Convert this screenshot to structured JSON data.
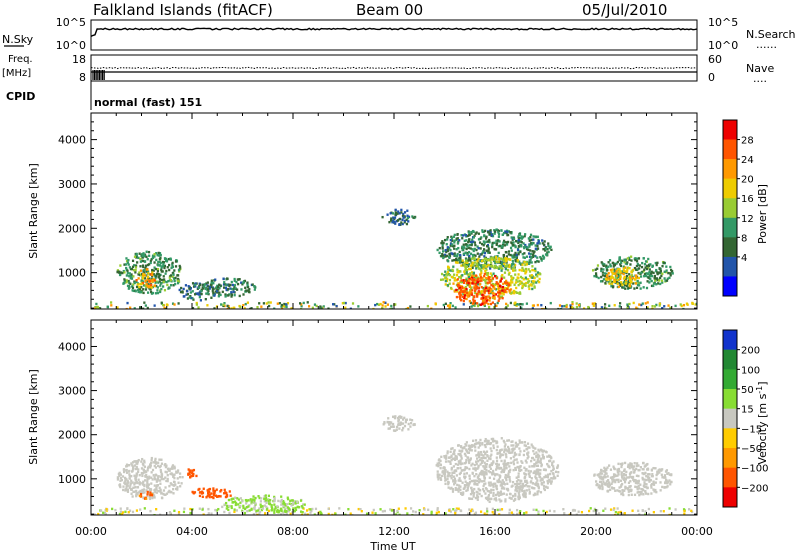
{
  "header": {
    "station": "Falkland Islands (fitACF)",
    "beam": "Beam 00",
    "date": "05/Jul/2010"
  },
  "noise_panel": {
    "left_label": "N.Sky",
    "left_ticks": [
      "10^5",
      "10^0"
    ],
    "right_ticks": [
      "10^5",
      "10^0"
    ],
    "right_label": "N.Search",
    "right_legend": "......"
  },
  "freq_panel": {
    "left_label_top": "Freq.",
    "left_label_bottom": "[MHz]",
    "left_ticks": [
      "18",
      "8"
    ],
    "right_ticks": [
      "60",
      "0"
    ],
    "right_label": "Nave",
    "right_legend": "....",
    "cpid_label": "CPID",
    "cpid_value": "normal (fast) 151"
  },
  "colorbar_power": {
    "label": "Power [dB]",
    "ticks": [
      "28",
      "24",
      "20",
      "16",
      "12",
      "8",
      "4"
    ],
    "colors": [
      "#ee0000",
      "#ff5500",
      "#ff9900",
      "#eecc00",
      "#99cc33",
      "#339966",
      "#336633",
      "#2255aa",
      "#0000ff"
    ]
  },
  "colorbar_velocity": {
    "label_main": "Velocity [m s",
    "label_sup": "-1",
    "label_end": "]",
    "ticks": [
      "200",
      "100",
      "50",
      "15",
      "−15",
      "−50",
      "−100",
      "−200"
    ],
    "colors": [
      "#1133cc",
      "#228833",
      "#33aa33",
      "#88dd33",
      "#c8c8c0",
      "#ffcc00",
      "#ff9900",
      "#ff5500",
      "#ee0000"
    ]
  },
  "chart_data": [
    {
      "type": "heatmap",
      "panel": "power",
      "ylabel": "Slant Range [km]",
      "yticks": [
        1000,
        2000,
        3000,
        4000
      ],
      "ylim": [
        180,
        4600
      ],
      "xticks": [
        "00:00",
        "04:00",
        "08:00",
        "12:00",
        "16:00",
        "20:00",
        "00:00"
      ],
      "xlim_hours": [
        0,
        24
      ],
      "regions": [
        {
          "t0": 1.0,
          "t1": 3.6,
          "r0": 550,
          "r1": 1500,
          "value": 10
        },
        {
          "t0": 1.7,
          "t1": 2.6,
          "r0": 650,
          "r1": 1100,
          "value": 22
        },
        {
          "t0": 3.4,
          "t1": 5.0,
          "r0": 400,
          "r1": 800,
          "value": 6
        },
        {
          "t0": 4.2,
          "t1": 6.5,
          "r0": 480,
          "r1": 900,
          "value": 8
        },
        {
          "t0": 11.5,
          "t1": 12.8,
          "r0": 2100,
          "r1": 2450,
          "value": 6
        },
        {
          "t0": 13.6,
          "t1": 18.2,
          "r0": 1100,
          "r1": 2000,
          "value": 9
        },
        {
          "t0": 13.8,
          "t1": 17.8,
          "r0": 450,
          "r1": 1400,
          "value": 16
        },
        {
          "t0": 14.2,
          "t1": 16.6,
          "r0": 300,
          "r1": 1000,
          "value": 26
        },
        {
          "t0": 19.8,
          "t1": 23.0,
          "r0": 650,
          "r1": 1400,
          "value": 10
        },
        {
          "t0": 20.3,
          "t1": 21.7,
          "r0": 700,
          "r1": 1150,
          "value": 20
        }
      ]
    },
    {
      "type": "heatmap",
      "panel": "velocity",
      "ylabel": "Slant Range [km]",
      "yticks": [
        1000,
        2000,
        3000,
        4000
      ],
      "ylim": [
        180,
        4600
      ],
      "xticks": [
        "00:00",
        "04:00",
        "08:00",
        "12:00",
        "16:00",
        "20:00",
        "00:00"
      ],
      "xlabel": "Time UT",
      "xlim_hours": [
        0,
        24
      ],
      "regions": [
        {
          "t0": 1.0,
          "t1": 3.6,
          "r0": 550,
          "r1": 1500,
          "value": 0
        },
        {
          "t0": 1.8,
          "t1": 2.4,
          "r0": 560,
          "r1": 760,
          "value": -100
        },
        {
          "t0": 3.9,
          "t1": 5.6,
          "r0": 580,
          "r1": 820,
          "value": -150
        },
        {
          "t0": 3.6,
          "t1": 4.2,
          "r0": 1050,
          "r1": 1250,
          "value": -150
        },
        {
          "t0": 5.0,
          "t1": 8.5,
          "r0": 250,
          "r1": 650,
          "value": 20
        },
        {
          "t0": 11.5,
          "t1": 12.8,
          "r0": 2100,
          "r1": 2450,
          "value": 0
        },
        {
          "t0": 13.6,
          "t1": 18.5,
          "r0": 500,
          "r1": 1950,
          "value": 0
        },
        {
          "t0": 19.8,
          "t1": 23.0,
          "r0": 650,
          "r1": 1400,
          "value": 0
        }
      ]
    }
  ]
}
